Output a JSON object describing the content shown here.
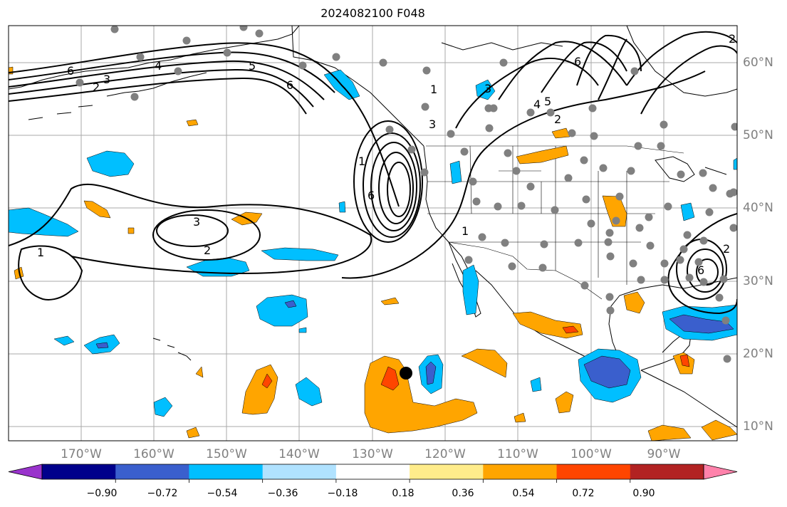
{
  "title": "2024082100 F048",
  "colors": {
    "grid": "#a8a8a8",
    "latlon_label": "#808080",
    "station_dot": "#808080",
    "contour": "#000000"
  },
  "lon_labels": [
    "170°W",
    "160°W",
    "150°W",
    "140°W",
    "130°W",
    "120°W",
    "110°W",
    "100°W",
    "90°W"
  ],
  "lat_labels": [
    "60°N",
    "50°N",
    "40°N",
    "30°N",
    "20°N",
    "10°N"
  ],
  "contour_labels": [
    "6",
    "3",
    "2",
    "4",
    "5",
    "6",
    "1",
    "3",
    "6",
    "2",
    "4",
    "5",
    "1",
    "3",
    "6",
    "3",
    "2",
    "1",
    "2",
    "6",
    "2",
    "1"
  ],
  "colorbar": {
    "colors": [
      "#9933cc",
      "#00008b",
      "#3a5fcd",
      "#00bfff",
      "#b0e2ff",
      "#ffffff",
      "#ffec8b",
      "#ffa500",
      "#ff4500",
      "#b22222",
      "#ff82ab"
    ],
    "tick_labels": [
      "−0.90",
      "−0.72",
      "−0.54",
      "−0.36",
      "−0.18",
      "0.18",
      "0.36",
      "0.54",
      "0.72",
      "0.90"
    ]
  }
}
